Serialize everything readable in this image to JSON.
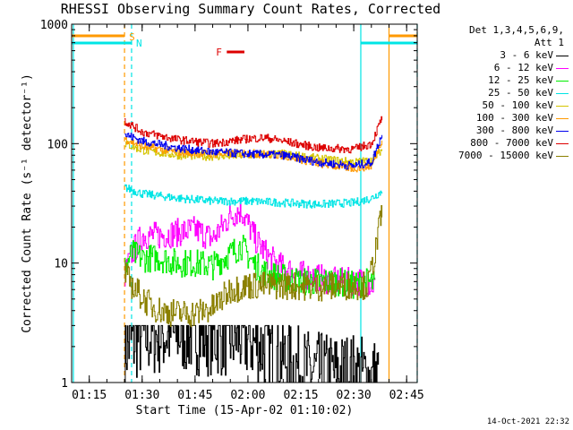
{
  "title": "RHESSI Observing Summary Count Rates, Corrected",
  "footer": "14-Oct-2021 22:32",
  "legend": {
    "header": [
      "Det 1,3,4,5,6,9,",
      "Att 1"
    ],
    "entries": [
      {
        "label": "3 - 6 keV",
        "color": "#000000"
      },
      {
        "label": "6 - 12 keV",
        "color": "#ff00ff"
      },
      {
        "label": "12 - 25 keV",
        "color": "#00ee00"
      },
      {
        "label": "25 - 50 keV",
        "color": "#00e5e5"
      },
      {
        "label": "50 - 100 keV",
        "color": "#d4c400"
      },
      {
        "label": "100 - 300 keV",
        "color": "#ff9900"
      },
      {
        "label": "300 - 800 keV",
        "color": "#0000ee"
      },
      {
        "label": "800 - 7000 keV",
        "color": "#dd0000"
      },
      {
        "label": "7000 - 15000 keV",
        "color": "#8b8000"
      }
    ]
  },
  "markers": {
    "S": "S",
    "N": "N",
    "F": "F",
    "S_color": "#ff9900",
    "N_color": "#00e5e5",
    "F_color": "#dd0000"
  },
  "chart_data": {
    "type": "line",
    "title": "RHESSI Observing Summary Count Rates, Corrected",
    "xlabel": "Start Time (15-Apr-02 01:10:02)",
    "ylabel": "Corrected Count Rate (s⁻¹ detector⁻¹)",
    "yscale": "log",
    "ylim": [
      1,
      1000
    ],
    "xlim": [
      "01:10",
      "02:48"
    ],
    "xticks": [
      "01:15",
      "01:30",
      "01:45",
      "02:00",
      "02:15",
      "02:30",
      "02:45"
    ],
    "yticks": [
      "1",
      "10",
      "100",
      "1000"
    ],
    "vertical_lines": [
      {
        "time": "01:10:30",
        "color": "#00e5e5",
        "style": "solid"
      },
      {
        "time": "01:25",
        "color": "#ff9900",
        "style": "dashed"
      },
      {
        "time": "01:27",
        "color": "#00e5e5",
        "style": "dashed"
      },
      {
        "time": "02:32",
        "color": "#00e5e5",
        "style": "solid"
      },
      {
        "time": "02:40",
        "color": "#ff9900",
        "style": "solid"
      },
      {
        "time": "02:48",
        "color": "#00e5e5",
        "style": "dashed"
      }
    ],
    "series": [
      {
        "name": "3 - 6 keV",
        "color": "#000000",
        "x": [
          "01:25",
          "01:30",
          "01:40",
          "01:50",
          "02:00",
          "02:05",
          "02:10",
          "02:15",
          "02:20",
          "02:30",
          "02:35",
          "02:37"
        ],
        "y": [
          2.0,
          2.4,
          2.6,
          2.5,
          2.3,
          1.9,
          1.6,
          1.3,
          1.2,
          1.2,
          1.1,
          1.1
        ]
      },
      {
        "name": "6 - 12 keV",
        "color": "#ff00ff",
        "x": [
          "01:25",
          "01:27",
          "01:30",
          "01:35",
          "01:40",
          "01:45",
          "01:50",
          "01:55",
          "01:58",
          "02:02",
          "02:06",
          "02:10",
          "02:15",
          "02:20",
          "02:25",
          "02:33",
          "02:36"
        ],
        "y": [
          8,
          12,
          17,
          17,
          18,
          19,
          16,
          25,
          28,
          16,
          11,
          9,
          8,
          7.5,
          7,
          7,
          6.5
        ]
      },
      {
        "name": "12 - 25 keV",
        "color": "#00ee00",
        "x": [
          "01:25",
          "01:27",
          "01:30",
          "01:35",
          "01:40",
          "01:45",
          "01:50",
          "01:55",
          "01:58",
          "02:02",
          "02:06",
          "02:10",
          "02:15",
          "02:20",
          "02:25",
          "02:30",
          "02:34",
          "02:36"
        ],
        "y": [
          9,
          12,
          11,
          11,
          10,
          10,
          9.5,
          12,
          14,
          9.5,
          8,
          7.5,
          7,
          7,
          7,
          6.5,
          7,
          6.5
        ]
      },
      {
        "name": "25 - 50 keV",
        "color": "#00e5e5",
        "x": [
          "01:25",
          "01:30",
          "01:40",
          "01:50",
          "02:00",
          "02:10",
          "02:20",
          "02:30",
          "02:35",
          "02:38"
        ],
        "y": [
          43,
          38,
          35,
          33,
          33,
          32,
          31,
          32,
          35,
          40
        ]
      },
      {
        "name": "50 - 100 keV",
        "color": "#d4c400",
        "x": [
          "01:25",
          "01:30",
          "01:40",
          "01:50",
          "02:00",
          "02:10",
          "02:20",
          "02:30",
          "02:35",
          "02:38"
        ],
        "y": [
          100,
          88,
          80,
          78,
          80,
          82,
          75,
          70,
          72,
          90
        ]
      },
      {
        "name": "100 - 300 keV",
        "color": "#ff9900",
        "x": [
          "01:25",
          "01:30",
          "01:40",
          "01:50",
          "02:00",
          "02:10",
          "02:20",
          "02:30",
          "02:35",
          "02:38"
        ],
        "y": [
          110,
          95,
          85,
          82,
          83,
          80,
          68,
          62,
          65,
          110
        ]
      },
      {
        "name": "300 - 800 keV",
        "color": "#0000ee",
        "x": [
          "01:25",
          "01:30",
          "01:40",
          "01:50",
          "02:00",
          "02:10",
          "02:20",
          "02:30",
          "02:35",
          "02:38"
        ],
        "y": [
          120,
          105,
          92,
          85,
          82,
          80,
          70,
          65,
          70,
          120
        ]
      },
      {
        "name": "800 - 7000 keV",
        "color": "#dd0000",
        "x": [
          "01:25",
          "01:30",
          "01:40",
          "01:50",
          "02:00",
          "02:05",
          "02:10",
          "02:20",
          "02:30",
          "02:35",
          "02:38"
        ],
        "y": [
          155,
          125,
          108,
          100,
          110,
          112,
          105,
          92,
          90,
          100,
          165
        ]
      },
      {
        "name": "7000 - 15000 keV",
        "color": "#8b8000",
        "x": [
          "01:25",
          "01:28",
          "01:32",
          "01:35",
          "01:40",
          "01:45",
          "01:50",
          "01:55",
          "02:00",
          "02:10",
          "02:20",
          "02:30",
          "02:34",
          "02:36",
          "02:38"
        ],
        "y": [
          8,
          6,
          4.5,
          4,
          3.8,
          3.8,
          4.2,
          6,
          6.5,
          6.5,
          6.3,
          6.5,
          6.5,
          12,
          28
        ]
      }
    ]
  }
}
